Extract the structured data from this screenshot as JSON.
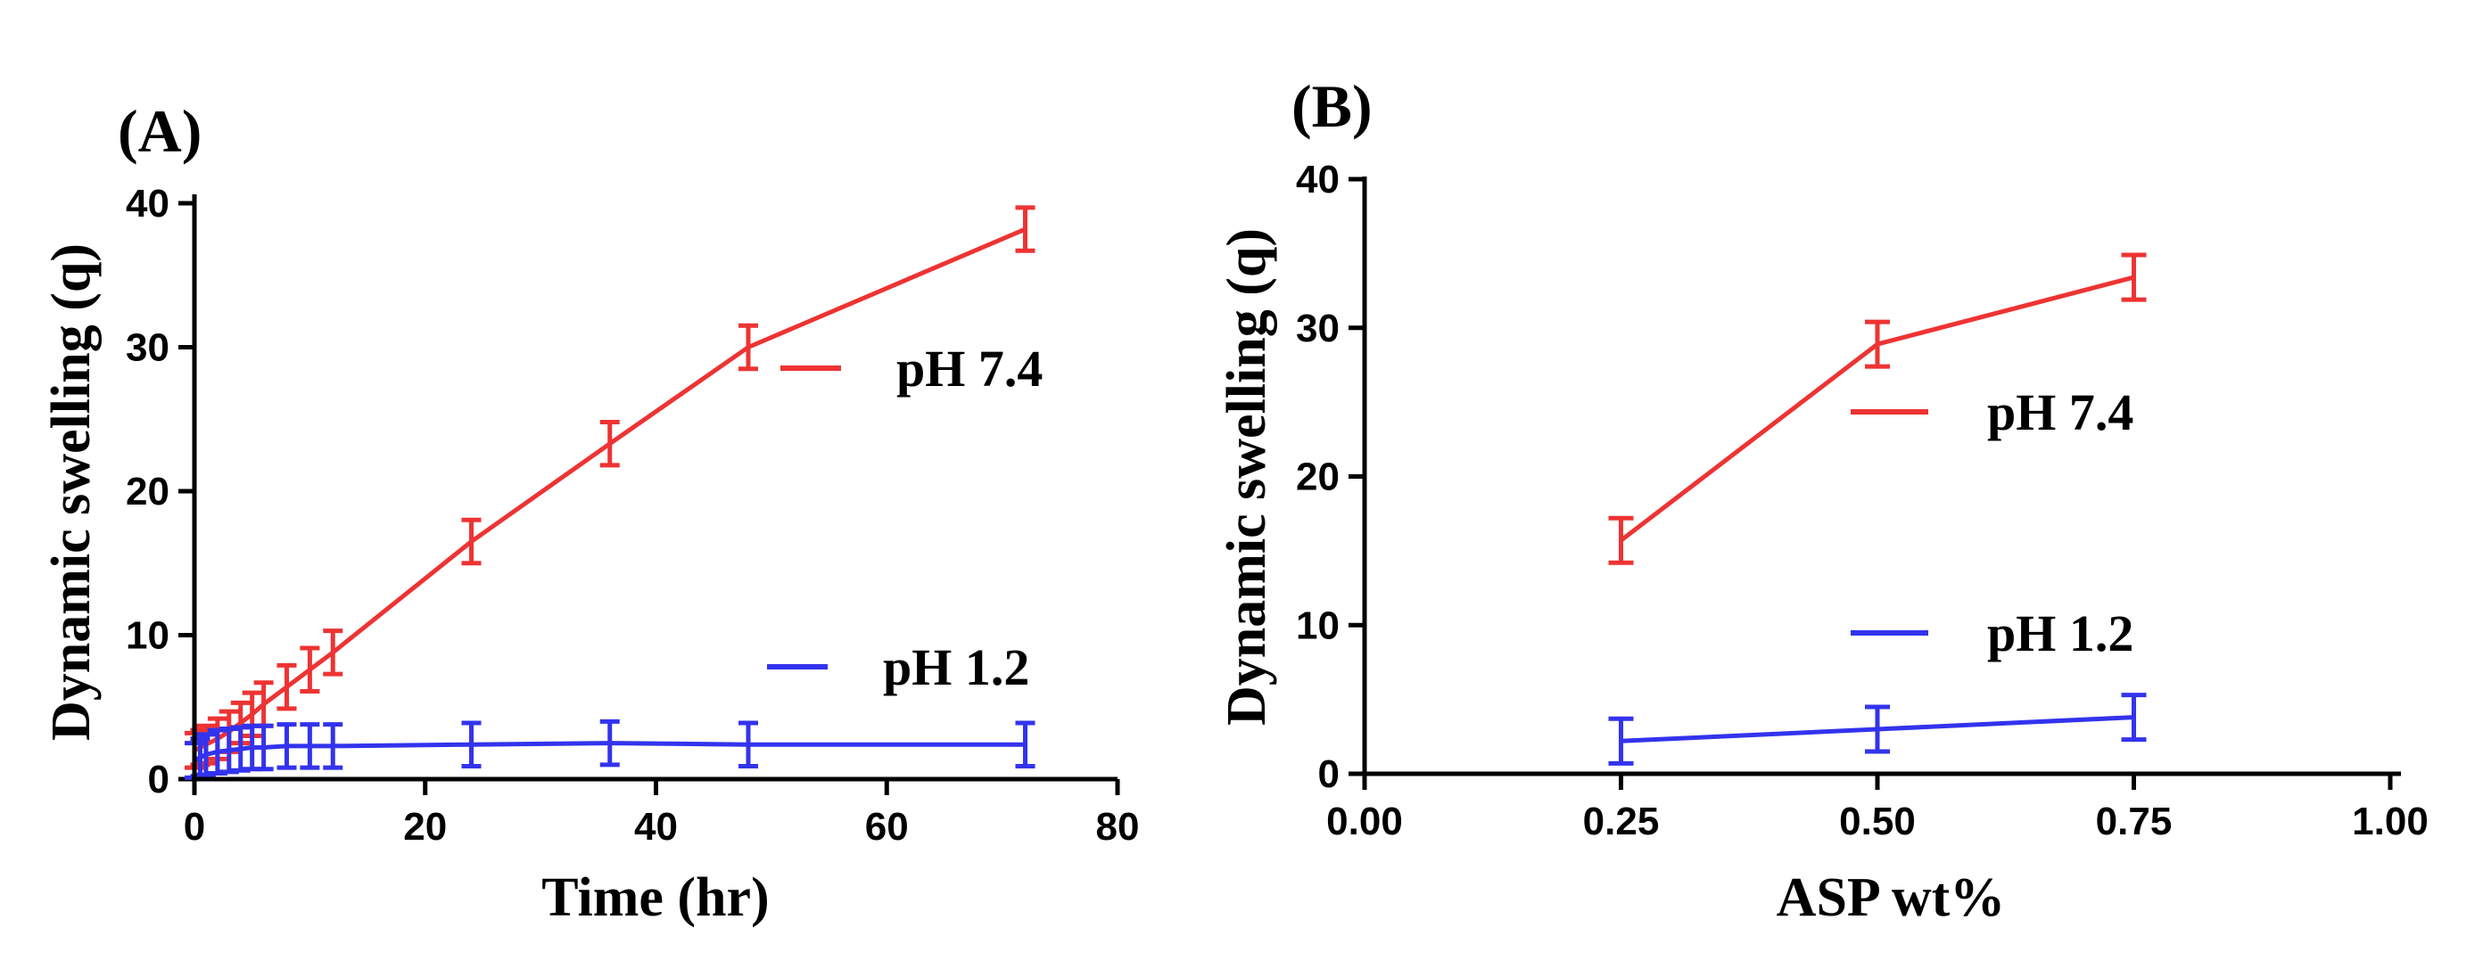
{
  "colors": {
    "red": "#ee3333",
    "blue": "#3333ee",
    "axis": "#000000"
  },
  "chart_data": [
    {
      "type": "line",
      "panel_label": "(A)",
      "title": "",
      "xlabel": "Time (hr)",
      "ylabel": "Dynamic swelling (q)",
      "xlim": [
        0,
        80
      ],
      "ylim": [
        0,
        40
      ],
      "xticks": [
        0,
        20,
        40,
        60,
        80
      ],
      "yticks": [
        0,
        10,
        20,
        30,
        40
      ],
      "xtick_labels": [
        "0",
        "20",
        "40",
        "60",
        "80"
      ],
      "ytick_labels": [
        "0",
        "10",
        "20",
        "30",
        "40"
      ],
      "series": [
        {
          "name": "pH 7.4",
          "color": "#ee3333",
          "x": [
            0,
            0.5,
            1,
            2,
            3,
            4,
            5,
            6,
            8,
            10,
            12,
            24,
            36,
            48,
            72
          ],
          "y": [
            2.0,
            2.2,
            2.4,
            2.8,
            3.3,
            3.9,
            4.5,
            5.2,
            6.4,
            7.6,
            8.8,
            16.5,
            23.3,
            30.0,
            38.2
          ],
          "err": [
            1.2,
            1.2,
            1.3,
            1.4,
            1.4,
            1.4,
            1.5,
            1.5,
            1.5,
            1.5,
            1.5,
            1.5,
            1.5,
            1.5,
            1.5
          ]
        },
        {
          "name": "pH 1.2",
          "color": "#3333ee",
          "x": [
            0,
            0.5,
            1,
            2,
            3,
            4,
            5,
            6,
            8,
            10,
            12,
            24,
            36,
            48,
            72
          ],
          "y": [
            1.3,
            1.5,
            1.7,
            1.9,
            2.0,
            2.1,
            2.2,
            2.2,
            2.3,
            2.3,
            2.3,
            2.4,
            2.5,
            2.4,
            2.4
          ],
          "err": [
            1.2,
            1.3,
            1.4,
            1.5,
            1.5,
            1.5,
            1.5,
            1.5,
            1.5,
            1.5,
            1.5,
            1.5,
            1.5,
            1.5,
            1.5
          ]
        }
      ],
      "legend": [
        {
          "label": "pH 7.4",
          "color": "#ee3333"
        },
        {
          "label": "pH 1.2",
          "color": "#3333ee"
        }
      ]
    },
    {
      "type": "line",
      "panel_label": "(B)",
      "title": "",
      "xlabel": "ASP wt%",
      "ylabel": "Dynamic swelling (q)",
      "xlim": [
        0,
        1
      ],
      "ylim": [
        0,
        40
      ],
      "xticks": [
        0,
        0.25,
        0.5,
        0.75,
        1.0
      ],
      "yticks": [
        0,
        10,
        20,
        30,
        40
      ],
      "xtick_labels": [
        "0.00",
        "0.25",
        "0.50",
        "0.75",
        "1.00"
      ],
      "ytick_labels": [
        "0",
        "10",
        "20",
        "30",
        "40"
      ],
      "series": [
        {
          "name": "pH 7.4",
          "color": "#ee3333",
          "x": [
            0.25,
            0.5,
            0.75
          ],
          "y": [
            15.7,
            28.9,
            33.4
          ],
          "err": [
            1.5,
            1.5,
            1.5
          ]
        },
        {
          "name": "pH 1.2",
          "color": "#3333ee",
          "x": [
            0.25,
            0.5,
            0.75
          ],
          "y": [
            2.2,
            3.0,
            3.8
          ],
          "err": [
            1.5,
            1.5,
            1.5
          ]
        }
      ],
      "legend": [
        {
          "label": "pH 7.4",
          "color": "#ee3333"
        },
        {
          "label": "pH 1.2",
          "color": "#3333ee"
        }
      ]
    }
  ]
}
